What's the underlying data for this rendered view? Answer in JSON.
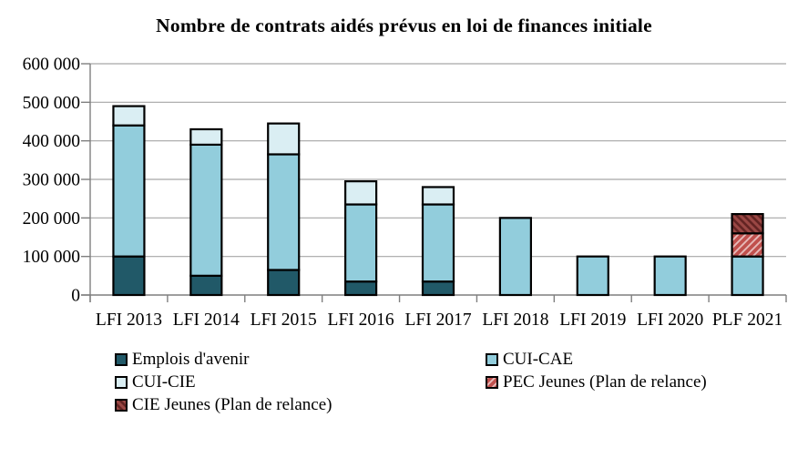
{
  "chart_data": {
    "type": "bar",
    "stacked": true,
    "title": "Nombre de contrats aidés prévus en loi de finances initiale",
    "categories": [
      "LFI 2013",
      "LFI 2014",
      "LFI 2015",
      "LFI 2016",
      "LFI 2017",
      "LFI 2018",
      "LFI 2019",
      "LFI 2020",
      "PLF 2021"
    ],
    "series": [
      {
        "name": "Emplois d'avenir",
        "color": "#215968",
        "hatch": "none",
        "values": [
          100000,
          50000,
          65000,
          35000,
          35000,
          0,
          0,
          0,
          0
        ]
      },
      {
        "name": "CUI-CAE",
        "color": "#92CDDC",
        "hatch": "none",
        "values": [
          340000,
          340000,
          300000,
          200000,
          200000,
          200000,
          100000,
          100000,
          100000
        ]
      },
      {
        "name": "CUI-CIE",
        "color": "#DAEEF3",
        "hatch": "none",
        "values": [
          50000,
          40000,
          80000,
          60000,
          45000,
          0,
          0,
          0,
          0
        ]
      },
      {
        "name": "PEC Jeunes (Plan de relance)",
        "color": "#E6B9B8",
        "hatch": "forward-diagonal",
        "hatch_color": "#C0504D",
        "values": [
          0,
          0,
          0,
          0,
          0,
          0,
          0,
          0,
          60000
        ]
      },
      {
        "name": "CIE Jeunes (Plan de relance)",
        "color": "#632423",
        "hatch": "backward-diagonal",
        "hatch_color": "#9A4744",
        "values": [
          0,
          0,
          0,
          0,
          0,
          0,
          0,
          0,
          50000
        ]
      }
    ],
    "ylim": [
      0,
      600000
    ],
    "ytick_step": 100000,
    "ytick_labels": [
      "0",
      "100 000",
      "200 000",
      "300 000",
      "400 000",
      "500 000",
      "600 000"
    ],
    "grid": true,
    "legend_position": "bottom",
    "bar_border_color": "#000000",
    "axis_color": "#7F7F7F",
    "grid_color": "#A6A6A6",
    "background": "#FFFFFF",
    "text_color": "#000000"
  }
}
